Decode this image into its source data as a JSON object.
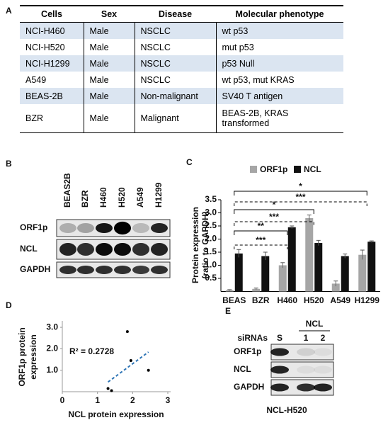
{
  "panels": {
    "a": "A",
    "b": "B",
    "c": "C",
    "d": "D",
    "e": "E"
  },
  "table": {
    "headers": [
      "Cells",
      "Sex",
      "Disease",
      "Molecular phenotype"
    ],
    "rows": [
      [
        "NCI-H460",
        "Male",
        "NSCLC",
        "wt p53"
      ],
      [
        "NCI-H520",
        "Male",
        "NSCLC",
        "mut p53"
      ],
      [
        "NCI-H1299",
        "Male",
        "NSCLC",
        "p53 Null"
      ],
      [
        "A549",
        "Male",
        "NSCLC",
        "wt p53, mut KRAS"
      ],
      [
        "BEAS-2B",
        "Male",
        "Non-malignant",
        "SV40 T antigen"
      ],
      [
        "BZR",
        "Male",
        "Malignant",
        "BEAS-2B, KRAS transformed"
      ]
    ]
  },
  "blot_b": {
    "lanes": [
      "BEAS2B",
      "BZR",
      "H460",
      "H520",
      "A549",
      "H1299"
    ],
    "rows": [
      "ORF1p",
      "NCL",
      "GAPDH"
    ]
  },
  "blot_e": {
    "group": "NCL",
    "lane_title": "siRNAs",
    "lanes": [
      "S",
      "1",
      "2"
    ],
    "rows": [
      "ORF1p",
      "NCL",
      "GAPDH"
    ],
    "caption": "NCL-H520"
  },
  "chart_data": [
    {
      "type": "bar",
      "ylabel": [
        "Protein expression",
        "(ratio to GAPDH)"
      ],
      "categories": [
        "BEAS",
        "BZR",
        "H460",
        "H520",
        "A549",
        "H1299"
      ],
      "series": [
        {
          "name": "ORF1p",
          "color": "#a6a6a6",
          "values": [
            0.05,
            0.1,
            1.0,
            2.8,
            0.3,
            1.4
          ],
          "errors": [
            0.02,
            0.03,
            0.1,
            0.12,
            0.1,
            0.18
          ]
        },
        {
          "name": "NCL",
          "color": "#111111",
          "values": [
            1.45,
            1.35,
            2.45,
            1.85,
            1.35,
            1.9
          ],
          "errors": [
            0.15,
            0.15,
            0.05,
            0.1,
            0.08,
            0.03
          ]
        }
      ],
      "ylim": [
        0,
        3.5
      ],
      "yticks": [
        0.5,
        {
          "value": 1,
          "label": "1.0"
        },
        1.5,
        {
          "value": 2,
          "label": "2.0"
        },
        2.5,
        {
          "value": 3,
          "label": "3.0"
        },
        3.5
      ],
      "annotations": [
        "***",
        "**",
        "***",
        "*",
        "***",
        "*"
      ]
    },
    {
      "type": "scatter",
      "xlabel": "NCL protein expression",
      "ylabel": [
        "ORF1p protein",
        "expression"
      ],
      "x": [
        1.3,
        1.4,
        1.95,
        1.85,
        2.45
      ],
      "values": [
        0.15,
        0.05,
        1.45,
        2.8,
        1.0
      ],
      "trendline": {
        "x": [
          1.3,
          2.45
        ],
        "y": [
          0.45,
          1.85
        ],
        "color": "#2e75b6"
      },
      "annotation": "R² = 0.2728",
      "xlim": [
        0,
        3
      ],
      "ylim": [
        0,
        3.3
      ],
      "xticks": [
        0,
        1,
        2,
        3
      ],
      "yticks": [
        {
          "value": 1,
          "label": "1.0"
        },
        {
          "value": 2,
          "label": "2.0"
        },
        {
          "value": 3,
          "label": "3.0"
        }
      ]
    }
  ]
}
